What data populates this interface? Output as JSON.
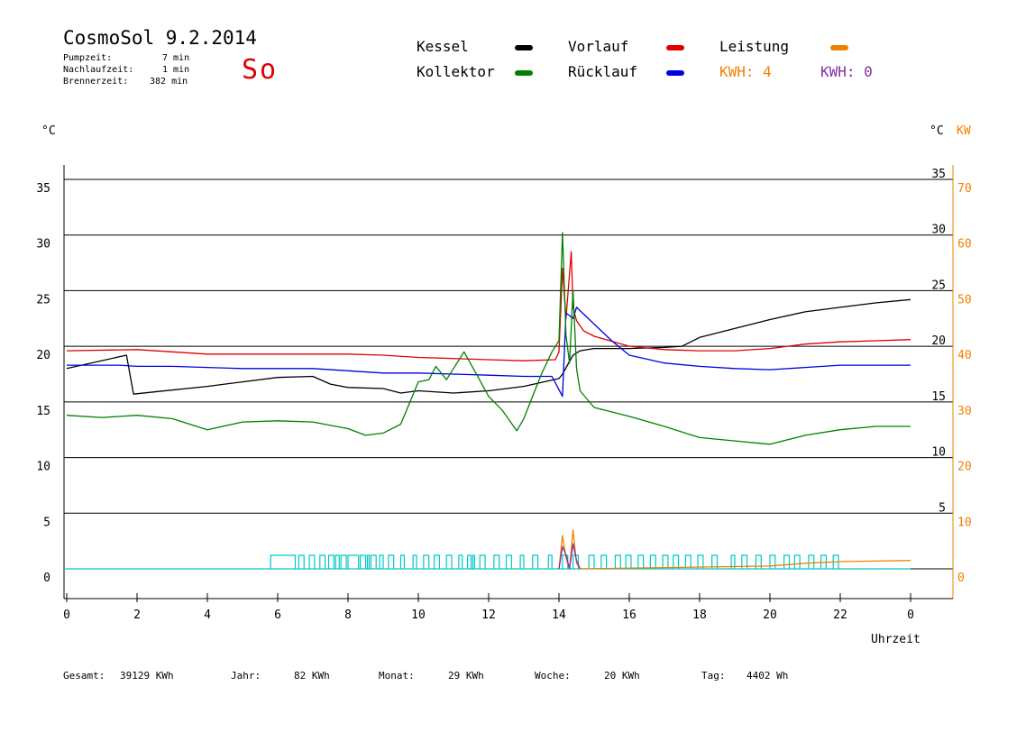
{
  "header": {
    "title": "CosmoSol 9.2.2014",
    "weekday": "So",
    "stats": [
      {
        "label": "Pumpzeit:",
        "value": "7 min"
      },
      {
        "label": "Nachlaufzeit:",
        "value": "1 min"
      },
      {
        "label": "Brennerzeit:",
        "value": "382 min"
      }
    ]
  },
  "legend": {
    "kessel": {
      "label": "Kessel",
      "color": "#000000"
    },
    "vorlauf": {
      "label": "Vorlauf",
      "color": "#e00000"
    },
    "leistung": {
      "label": "Leistung",
      "color": "#f08000"
    },
    "kollektor": {
      "label": "Kollektor",
      "color": "#008000"
    },
    "ruecklauf": {
      "label": "Rücklauf",
      "color": "#0000e0"
    },
    "kwh_orange": "KWH: 4",
    "kwh_purple": "KWH: 0"
  },
  "axes": {
    "left_unit": "°C",
    "right_unit": "°C",
    "right_unit2": "KW",
    "xlabel": "Uhrzeit"
  },
  "footer": [
    {
      "label": "Gesamt:",
      "value": "39129 KWh"
    },
    {
      "label": "Jahr:",
      "value": "82 KWh"
    },
    {
      "label": "Monat:",
      "value": "29 KWh"
    },
    {
      "label": "Woche:",
      "value": "20 KWh"
    },
    {
      "label": "Tag:",
      "value": "4402 Wh"
    }
  ],
  "chart_data": {
    "type": "line",
    "title": "CosmoSol 9.2.2014",
    "xlabel": "Uhrzeit",
    "ylabel": "°C",
    "xlim": [
      0,
      24
    ],
    "ylim": [
      0,
      35
    ],
    "x_ticks": [
      "0",
      "2",
      "4",
      "6",
      "8",
      "10",
      "12",
      "14",
      "16",
      "18",
      "20",
      "22",
      "0"
    ],
    "y_ticks_left": [
      "0",
      "5",
      "10",
      "15",
      "20",
      "25",
      "30",
      "35"
    ],
    "y_ticks_right": [
      "5",
      "10",
      "15",
      "20",
      "25",
      "30",
      "35"
    ],
    "y_ticks_kw": [
      "0",
      "10",
      "20",
      "30",
      "40",
      "50",
      "60",
      "70"
    ],
    "grid": true,
    "legend_position": "top",
    "series": [
      {
        "name": "Kessel",
        "color": "#000000",
        "x": [
          0,
          1.7,
          1.9,
          2.5,
          4,
          5,
          6,
          7,
          7.5,
          8,
          9,
          9.5,
          10,
          11,
          12,
          13,
          14,
          14.1,
          14.4,
          14.6,
          15,
          16,
          17,
          17.5,
          18,
          19,
          20,
          21,
          22,
          23,
          24
        ],
        "y": [
          18.0,
          19.2,
          15.7,
          15.9,
          16.4,
          16.8,
          17.2,
          17.3,
          16.6,
          16.3,
          16.2,
          15.8,
          16.0,
          15.8,
          16.0,
          16.4,
          17.1,
          17.5,
          19.2,
          19.6,
          19.8,
          19.8,
          19.9,
          20.0,
          20.8,
          21.6,
          22.4,
          23.1,
          23.5,
          23.9,
          24.2
        ]
      },
      {
        "name": "Vorlauf",
        "color": "#e00000",
        "x": [
          0,
          2,
          3,
          4,
          6,
          7,
          8,
          9,
          10,
          11,
          12,
          13,
          13.9,
          14.0,
          14.1,
          14.2,
          14.35,
          14.4,
          14.5,
          14.7,
          15,
          16,
          17,
          18,
          19,
          20,
          21,
          22,
          23,
          24
        ],
        "y": [
          19.6,
          19.7,
          19.5,
          19.3,
          19.3,
          19.3,
          19.3,
          19.2,
          19.0,
          18.9,
          18.8,
          18.7,
          18.8,
          19.5,
          27.0,
          22.5,
          28.5,
          23.5,
          22.3,
          21.4,
          20.9,
          20.0,
          19.7,
          19.6,
          19.6,
          19.8,
          20.2,
          20.4,
          20.5,
          20.6
        ]
      },
      {
        "name": "Rücklauf",
        "color": "#0000e0",
        "x": [
          0,
          1.5,
          2,
          3,
          4,
          5,
          6,
          7,
          8,
          9,
          10,
          11,
          12,
          13,
          13.8,
          14.1,
          14.2,
          14.4,
          14.5,
          15,
          15.5,
          16,
          17,
          18,
          19,
          20,
          21,
          22,
          23,
          24
        ],
        "y": [
          18.3,
          18.3,
          18.2,
          18.2,
          18.1,
          18.0,
          18.0,
          18.0,
          17.8,
          17.6,
          17.6,
          17.5,
          17.4,
          17.3,
          17.3,
          15.5,
          23.0,
          22.5,
          23.5,
          22.0,
          20.5,
          19.2,
          18.5,
          18.2,
          18.0,
          17.9,
          18.1,
          18.3,
          18.3,
          18.3
        ]
      },
      {
        "name": "Kollektor",
        "color": "#008000",
        "x": [
          0,
          1,
          2,
          3,
          4,
          5,
          6,
          7,
          8,
          8.5,
          9,
          9.5,
          10,
          10.3,
          10.5,
          10.8,
          11.3,
          11.6,
          12,
          12.4,
          12.8,
          13,
          13.5,
          13.8,
          14.0,
          14.1,
          14.2,
          14.3,
          14.4,
          14.5,
          14.6,
          15,
          16,
          17,
          18,
          19,
          20,
          21,
          22,
          23,
          24
        ],
        "y": [
          13.8,
          13.6,
          13.8,
          13.5,
          12.5,
          13.2,
          13.3,
          13.2,
          12.6,
          12.0,
          12.2,
          13.0,
          16.8,
          17.0,
          18.2,
          17.0,
          19.5,
          17.8,
          15.5,
          14.2,
          12.4,
          13.5,
          17.5,
          19.5,
          20.5,
          30.2,
          21.0,
          18.5,
          25.0,
          18.0,
          16.0,
          14.5,
          13.7,
          12.8,
          11.8,
          11.5,
          11.2,
          12.0,
          12.5,
          12.8,
          12.8
        ]
      },
      {
        "name": "Leistung",
        "color": "#f08000",
        "axis": "KW",
        "x": [
          14.0,
          14.1,
          14.2,
          14.3,
          14.4,
          14.5,
          14.6,
          20.0,
          21.0,
          22.0,
          23.0,
          24.0
        ],
        "y": [
          0,
          6.0,
          2.0,
          0,
          7.0,
          1.0,
          0,
          0.5,
          1.0,
          1.3,
          1.4,
          1.5
        ]
      },
      {
        "name": "KWH",
        "color": "#8030a0",
        "axis": "KW",
        "x": [
          14.0,
          14.1,
          14.2,
          14.3,
          14.4,
          14.5,
          14.6
        ],
        "y": [
          0,
          4.0,
          2.5,
          0,
          4.5,
          1.5,
          0
        ]
      }
    ],
    "pump_state": {
      "color": "#00c8c8",
      "baseline": 0,
      "pulses": [
        [
          5.8,
          6.5
        ],
        [
          6.6,
          6.75
        ],
        [
          6.9,
          7.05
        ],
        [
          7.2,
          7.35
        ],
        [
          7.45,
          7.6
        ],
        [
          7.65,
          7.75
        ],
        [
          7.8,
          7.95
        ],
        [
          8.0,
          8.3
        ],
        [
          8.35,
          8.5
        ],
        [
          8.55,
          8.6
        ],
        [
          8.65,
          8.8
        ],
        [
          8.9,
          9.0
        ],
        [
          9.15,
          9.3
        ],
        [
          9.5,
          9.6
        ],
        [
          9.85,
          9.95
        ],
        [
          10.15,
          10.3
        ],
        [
          10.45,
          10.6
        ],
        [
          10.8,
          10.95
        ],
        [
          11.15,
          11.25
        ],
        [
          11.4,
          11.5
        ],
        [
          11.55,
          11.6
        ],
        [
          11.75,
          11.9
        ],
        [
          12.15,
          12.3
        ],
        [
          12.5,
          12.65
        ],
        [
          12.9,
          13.0
        ],
        [
          13.25,
          13.4
        ],
        [
          13.7,
          13.8
        ],
        [
          14.1,
          14.25
        ],
        [
          14.4,
          14.55
        ],
        [
          14.85,
          15.0
        ],
        [
          15.2,
          15.35
        ],
        [
          15.6,
          15.75
        ],
        [
          15.9,
          16.05
        ],
        [
          16.25,
          16.4
        ],
        [
          16.6,
          16.75
        ],
        [
          16.95,
          17.1
        ],
        [
          17.25,
          17.4
        ],
        [
          17.6,
          17.75
        ],
        [
          17.95,
          18.1
        ],
        [
          18.35,
          18.5
        ],
        [
          18.9,
          19.0
        ],
        [
          19.2,
          19.35
        ],
        [
          19.6,
          19.75
        ],
        [
          20.0,
          20.15
        ],
        [
          20.4,
          20.55
        ],
        [
          20.7,
          20.85
        ],
        [
          21.1,
          21.25
        ],
        [
          21.45,
          21.6
        ],
        [
          21.8,
          21.95
        ]
      ]
    }
  }
}
